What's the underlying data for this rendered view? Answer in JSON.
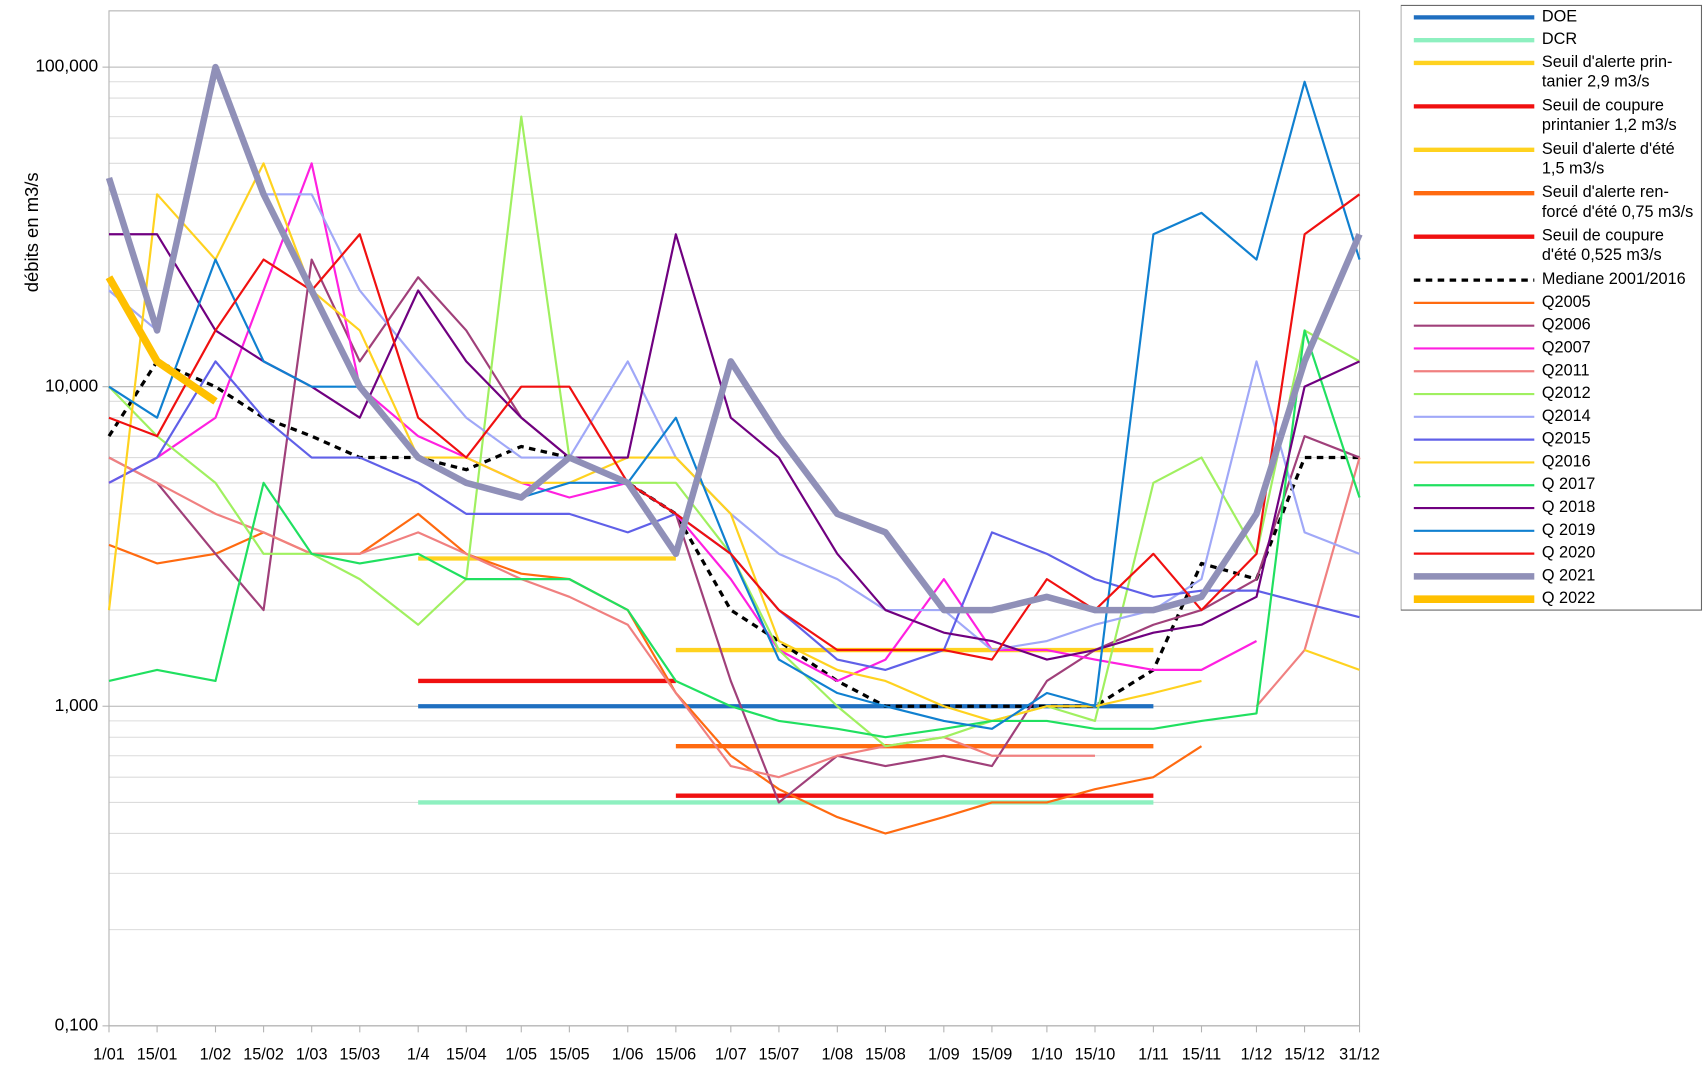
{
  "chart_data": {
    "type": "line",
    "y_label": "débits en m3/s",
    "log_scale": true,
    "grid": true,
    "legend": "right",
    "x": [
      1,
      15,
      32,
      46,
      60,
      74,
      91,
      105,
      121,
      135,
      152,
      166,
      182,
      196,
      213,
      227,
      244,
      258,
      274,
      288,
      305,
      319,
      335,
      349,
      365
    ],
    "xlim": [
      1,
      365
    ],
    "xticks": [
      {
        "value": 1,
        "label": "1/01"
      },
      {
        "value": 15,
        "label": "15/01"
      },
      {
        "value": 32,
        "label": "1/02"
      },
      {
        "value": 46,
        "label": "15/02"
      },
      {
        "value": 60,
        "label": "1/03"
      },
      {
        "value": 74,
        "label": "15/03"
      },
      {
        "value": 91,
        "label": "1/4"
      },
      {
        "value": 105,
        "label": "15/04"
      },
      {
        "value": 121,
        "label": "1/05"
      },
      {
        "value": 135,
        "label": "15/05"
      },
      {
        "value": 152,
        "label": "1/06"
      },
      {
        "value": 166,
        "label": "15/06"
      },
      {
        "value": 182,
        "label": "1/07"
      },
      {
        "value": 196,
        "label": "15/07"
      },
      {
        "value": 213,
        "label": "1/08"
      },
      {
        "value": 227,
        "label": "15/08"
      },
      {
        "value": 244,
        "label": "1/09"
      },
      {
        "value": 258,
        "label": "15/09"
      },
      {
        "value": 274,
        "label": "1/10"
      },
      {
        "value": 288,
        "label": "15/10"
      },
      {
        "value": 305,
        "label": "1/11"
      },
      {
        "value": 319,
        "label": "15/11"
      },
      {
        "value": 335,
        "label": "1/12"
      },
      {
        "value": 349,
        "label": "15/12"
      },
      {
        "value": 365,
        "label": "31/12"
      }
    ],
    "ylim": [
      0.1,
      150
    ],
    "yticks": [
      {
        "value": 0.1,
        "label": "0,100"
      },
      {
        "value": 1,
        "label": "1,000"
      },
      {
        "value": 10,
        "label": "10,000"
      },
      {
        "value": 100,
        "label": "100,000"
      }
    ],
    "series": [
      {
        "name": "DOE",
        "color": "#1f6fc0",
        "line_width": 4,
        "values": [
          null,
          null,
          null,
          null,
          null,
          null,
          1,
          1,
          1,
          1,
          1,
          1,
          1,
          1,
          1,
          1,
          1,
          1,
          1,
          1,
          1,
          null,
          null,
          null,
          null
        ]
      },
      {
        "name": "DCR",
        "color": "#8ef0c0",
        "line_width": 4,
        "values": [
          null,
          null,
          null,
          null,
          null,
          null,
          0.5,
          0.5,
          0.5,
          0.5,
          0.5,
          0.5,
          0.5,
          0.5,
          0.5,
          0.5,
          0.5,
          0.5,
          0.5,
          0.5,
          0.5,
          null,
          null,
          null,
          null
        ]
      },
      {
        "name": "Seuil d'alerte prin-\ntanier 2,9 m3/s",
        "color": "#ffd21f",
        "line_width": 4,
        "values": [
          null,
          null,
          null,
          null,
          null,
          null,
          2.9,
          2.9,
          2.9,
          2.9,
          2.9,
          2.9,
          null,
          null,
          null,
          null,
          null,
          null,
          null,
          null,
          null,
          null,
          null,
          null,
          null
        ]
      },
      {
        "name": "Seuil de coupure\nprintanier 1,2 m3/s",
        "color": "#f01010",
        "line_width": 4,
        "values": [
          null,
          null,
          null,
          null,
          null,
          null,
          1.2,
          1.2,
          1.2,
          1.2,
          1.2,
          1.2,
          null,
          null,
          null,
          null,
          null,
          null,
          null,
          null,
          null,
          null,
          null,
          null,
          null
        ]
      },
      {
        "name": "Seuil d'alerte d'été\n1,5 m3/s",
        "color": "#ffd21f",
        "line_width": 4,
        "values": [
          null,
          null,
          null,
          null,
          null,
          null,
          null,
          null,
          null,
          null,
          null,
          1.5,
          1.5,
          1.5,
          1.5,
          1.5,
          1.5,
          1.5,
          1.5,
          1.5,
          1.5,
          null,
          null,
          null,
          null
        ]
      },
      {
        "name": "Seuil d'alerte ren-\nforcé d'été 0,75 m3/s",
        "color": "#ff6a10",
        "line_width": 4,
        "values": [
          null,
          null,
          null,
          null,
          null,
          null,
          null,
          null,
          null,
          null,
          null,
          0.75,
          0.75,
          0.75,
          0.75,
          0.75,
          0.75,
          0.75,
          0.75,
          0.75,
          0.75,
          null,
          null,
          null,
          null
        ]
      },
      {
        "name": "Seuil de coupure\nd'été 0,525 m3/s",
        "color": "#f01010",
        "line_width": 4,
        "values": [
          null,
          null,
          null,
          null,
          null,
          null,
          null,
          null,
          null,
          null,
          null,
          0.525,
          0.525,
          0.525,
          0.525,
          0.525,
          0.525,
          0.525,
          0.525,
          0.525,
          0.525,
          null,
          null,
          null,
          null
        ]
      },
      {
        "name": "Mediane 2001/2016",
        "color": "#000000",
        "line_width": 3,
        "dashed": true,
        "values": [
          7,
          12,
          10,
          8,
          7,
          6,
          6,
          5.5,
          6.5,
          6,
          5,
          4,
          2,
          1.6,
          1.2,
          1,
          1,
          1,
          1,
          1,
          1.3,
          2.8,
          2.5,
          6,
          6
        ]
      },
      {
        "name": "Q2005",
        "color": "#ff6a10",
        "line_width": 2,
        "values": [
          3.2,
          2.8,
          3,
          3.5,
          3,
          3,
          4,
          3,
          2.6,
          2.5,
          2,
          1.1,
          0.7,
          0.55,
          0.45,
          0.4,
          0.45,
          0.5,
          0.5,
          0.55,
          0.6,
          0.75,
          null,
          null,
          null
        ]
      },
      {
        "name": "Q2006",
        "color": "#a0407a",
        "line_width": 2,
        "values": [
          6,
          5,
          3,
          2,
          25,
          12,
          22,
          15,
          8,
          6,
          5,
          4,
          1.2,
          0.5,
          0.7,
          0.65,
          0.7,
          0.65,
          1.2,
          1.5,
          1.8,
          2,
          2.5,
          7,
          6
        ]
      },
      {
        "name": "Q2007",
        "color": "#ff20e0",
        "line_width": 2,
        "values": [
          5,
          6,
          8,
          20,
          50,
          10,
          7,
          6,
          5,
          4.5,
          5,
          4,
          2.5,
          1.5,
          1.2,
          1.4,
          2.5,
          1.5,
          1.5,
          1.4,
          1.3,
          1.3,
          1.6,
          null,
          null
        ]
      },
      {
        "name": "Q2011",
        "color": "#f08080",
        "line_width": 2,
        "values": [
          6,
          5,
          4,
          3.5,
          3,
          3,
          3.5,
          3,
          2.5,
          2.2,
          1.8,
          1.1,
          0.65,
          0.6,
          0.7,
          0.75,
          0.8,
          0.7,
          0.7,
          0.7,
          null,
          null,
          1,
          1.5,
          6
        ]
      },
      {
        "name": "Q2012",
        "color": "#a0f060",
        "line_width": 2,
        "values": [
          10,
          7,
          5,
          3,
          3,
          2.5,
          1.8,
          2.5,
          70,
          6,
          5,
          5,
          3,
          1.5,
          1,
          0.75,
          0.8,
          0.9,
          1,
          0.9,
          5,
          6,
          3,
          15,
          12
        ]
      },
      {
        "name": "Q2014",
        "color": "#a0a8f8",
        "line_width": 2,
        "values": [
          20,
          15,
          100,
          40,
          40,
          20,
          12,
          8,
          6,
          6,
          12,
          6,
          4,
          3,
          2.5,
          2,
          2,
          1.5,
          1.6,
          1.8,
          2,
          2.5,
          12,
          3.5,
          3
        ]
      },
      {
        "name": "Q2015",
        "color": "#6060e8",
        "line_width": 2,
        "values": [
          5,
          6,
          12,
          8,
          6,
          6,
          5,
          4,
          4,
          4,
          3.5,
          4,
          3,
          2,
          1.4,
          1.3,
          1.5,
          3.5,
          3,
          2.5,
          2.2,
          2.3,
          2.3,
          2.1,
          1.9
        ]
      },
      {
        "name": "Q2016",
        "color": "#ffd21f",
        "line_width": 2,
        "values": [
          2,
          40,
          25,
          50,
          20,
          15,
          6,
          6,
          5,
          5,
          6,
          6,
          4,
          1.6,
          1.3,
          1.2,
          1,
          0.9,
          1,
          1,
          1.1,
          1.2,
          null,
          1.5,
          1.3
        ]
      },
      {
        "name": "Q 2017",
        "color": "#20e060",
        "line_width": 2,
        "values": [
          1.2,
          1.3,
          1.2,
          5,
          3,
          2.8,
          3,
          2.5,
          2.5,
          2.5,
          2,
          1.2,
          1,
          0.9,
          0.85,
          0.8,
          0.85,
          0.9,
          0.9,
          0.85,
          0.85,
          0.9,
          0.95,
          15,
          4.5
        ]
      },
      {
        "name": "Q 2018",
        "color": "#700080",
        "line_width": 2,
        "values": [
          30,
          30,
          15,
          12,
          10,
          8,
          20,
          12,
          8,
          6,
          6,
          30,
          8,
          6,
          3,
          2,
          1.7,
          1.6,
          1.4,
          1.5,
          1.7,
          1.8,
          2.2,
          10,
          12
        ]
      },
      {
        "name": "Q 2019",
        "color": "#1080d0",
        "line_width": 2,
        "values": [
          10,
          8,
          25,
          12,
          10,
          10,
          6,
          5,
          4.5,
          5,
          5,
          8,
          3,
          1.4,
          1.1,
          1,
          0.9,
          0.85,
          1.1,
          1,
          30,
          35,
          25,
          90,
          25
        ]
      },
      {
        "name": "Q 2020",
        "color": "#f01010",
        "line_width": 2,
        "values": [
          8,
          7,
          15,
          25,
          20,
          30,
          8,
          6,
          10,
          10,
          5,
          4,
          3,
          2,
          1.5,
          1.5,
          1.5,
          1.4,
          2.5,
          2,
          3,
          2,
          3,
          30,
          40
        ]
      },
      {
        "name": "Q 2021",
        "color": "#9090b8",
        "line_width": 6,
        "values": [
          45,
          15,
          100,
          40,
          20,
          10,
          6,
          5,
          4.5,
          6,
          5,
          3,
          12,
          7,
          4,
          3.5,
          2,
          2,
          2.2,
          2,
          2,
          2.2,
          4,
          12,
          30
        ]
      },
      {
        "name": "Q 2022",
        "color": "#ffc000",
        "line_width": 7,
        "values": [
          22,
          12,
          9,
          null,
          null,
          null,
          null,
          null,
          null,
          null,
          null,
          null,
          null,
          null,
          null,
          null,
          null,
          null,
          null,
          null,
          null,
          null,
          null,
          null,
          null
        ]
      }
    ]
  }
}
